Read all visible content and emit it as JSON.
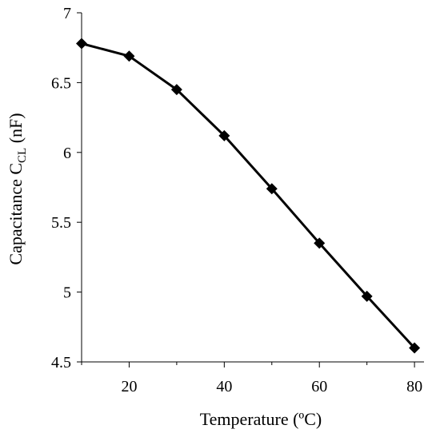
{
  "chart_data": {
    "type": "line",
    "xlabel": "Temperature (ºC)",
    "ylabel_main": "Capacitance C",
    "ylabel_subscript": "CL",
    "ylabel_unit": " (nF)",
    "xlim": [
      10,
      82
    ],
    "ylim": [
      4.5,
      7
    ],
    "x_ticks": [
      20,
      40,
      60,
      80
    ],
    "x_tick_labels": [
      "20",
      "40",
      "60",
      "80"
    ],
    "x_minor_ticks": [
      10,
      30,
      50,
      70
    ],
    "y_ticks": [
      4.5,
      5,
      5.5,
      6,
      6.5,
      7
    ],
    "y_tick_labels": [
      "4.5",
      "5",
      "5.5",
      "6",
      "6.5",
      "7"
    ],
    "grid": false,
    "series": [
      {
        "x": [
          10,
          20,
          30,
          40,
          50,
          60,
          70,
          80
        ],
        "y": [
          6.78,
          6.69,
          6.45,
          6.12,
          5.74,
          5.35,
          4.97,
          4.6
        ],
        "color": "#000000",
        "marker": "diamond"
      }
    ]
  }
}
